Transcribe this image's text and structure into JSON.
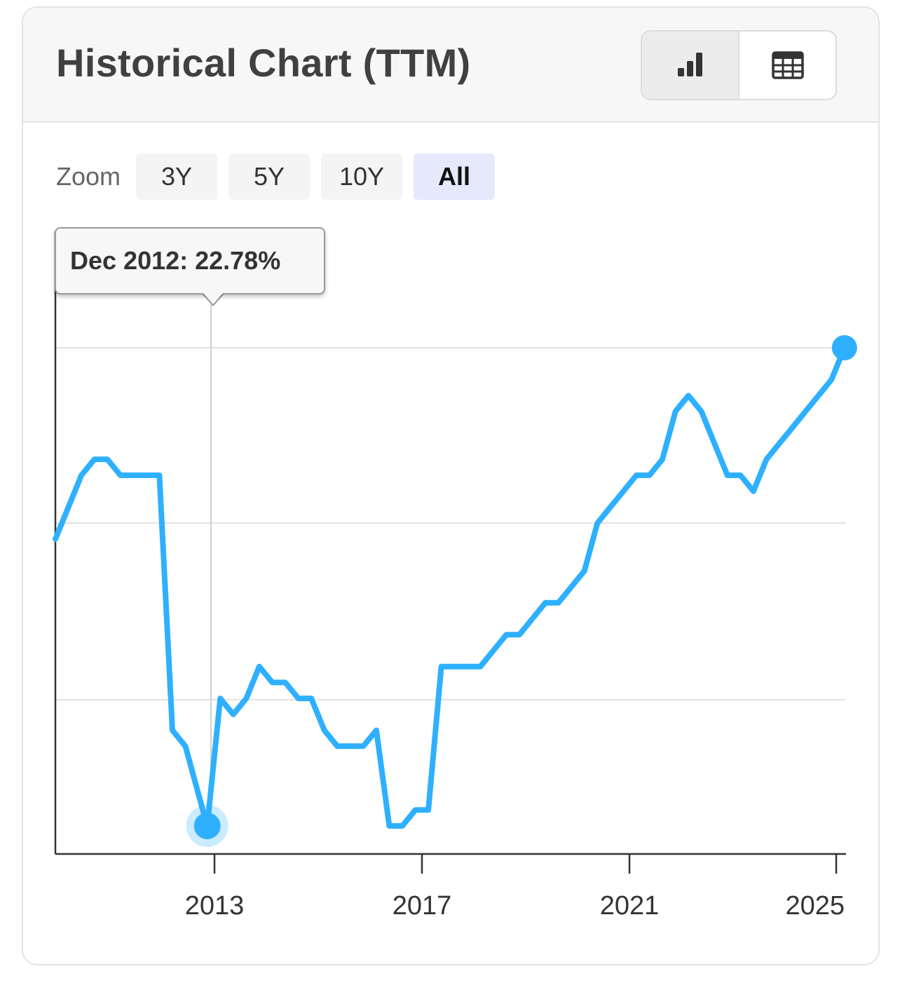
{
  "header": {
    "title": "Historical Chart (TTM)",
    "view_buttons": [
      {
        "icon": "bar-chart-icon",
        "active": true
      },
      {
        "icon": "table-icon",
        "active": false
      }
    ]
  },
  "zoom": {
    "label": "Zoom",
    "options": [
      {
        "label": "3Y",
        "active": false
      },
      {
        "label": "5Y",
        "active": false
      },
      {
        "label": "10Y",
        "active": false
      },
      {
        "label": "All",
        "active": true
      }
    ]
  },
  "tooltip": {
    "text": "Dec 2012: 22.78%",
    "x": 2012.92,
    "y": 22.78
  },
  "colors": {
    "line": "#2EB0FF",
    "grid": "#e2e2e2",
    "axis": "#333333"
  },
  "chart_data": {
    "type": "line",
    "title": "Historical Chart (TTM)",
    "xlabel": "",
    "ylabel": "",
    "x_ticks": [
      2013,
      2017,
      2021,
      2025
    ],
    "xlim": [
      2010.0,
      2025.2
    ],
    "ylim": [
      21.9,
      23.2
    ],
    "grid": true,
    "y_gridlines": [
      23.0,
      22.9,
      22.8
    ],
    "series": [
      {
        "values": [
          [
            2010.0,
            22.96
          ],
          [
            2010.25,
            22.98
          ],
          [
            2010.5,
            23.0
          ],
          [
            2010.75,
            23.01
          ],
          [
            2011.0,
            23.01
          ],
          [
            2011.25,
            23.0
          ],
          [
            2011.5,
            23.0
          ],
          [
            2011.75,
            23.0
          ],
          [
            2012.0,
            23.0
          ],
          [
            2012.25,
            22.84
          ],
          [
            2012.5,
            22.83
          ],
          [
            2012.75,
            22.8
          ],
          [
            2012.92,
            22.78
          ],
          [
            2013.17,
            22.86
          ],
          [
            2013.42,
            22.85
          ],
          [
            2013.67,
            22.86
          ],
          [
            2013.92,
            22.88
          ],
          [
            2014.17,
            22.87
          ],
          [
            2014.42,
            22.87
          ],
          [
            2014.67,
            22.86
          ],
          [
            2014.92,
            22.86
          ],
          [
            2015.17,
            22.84
          ],
          [
            2015.42,
            22.83
          ],
          [
            2015.67,
            22.83
          ],
          [
            2015.92,
            22.83
          ],
          [
            2016.17,
            22.84
          ],
          [
            2016.42,
            22.78
          ],
          [
            2016.67,
            22.78
          ],
          [
            2016.92,
            22.79
          ],
          [
            2017.17,
            22.79
          ],
          [
            2017.42,
            22.88
          ],
          [
            2017.67,
            22.88
          ],
          [
            2017.92,
            22.88
          ],
          [
            2018.17,
            22.88
          ],
          [
            2018.42,
            22.89
          ],
          [
            2018.67,
            22.9
          ],
          [
            2018.92,
            22.9
          ],
          [
            2019.17,
            22.91
          ],
          [
            2019.42,
            22.92
          ],
          [
            2019.67,
            22.92
          ],
          [
            2019.92,
            22.93
          ],
          [
            2020.17,
            22.94
          ],
          [
            2020.42,
            22.97
          ],
          [
            2020.67,
            22.98
          ],
          [
            2020.92,
            22.99
          ],
          [
            2021.17,
            23.0
          ],
          [
            2021.42,
            23.0
          ],
          [
            2021.67,
            23.01
          ],
          [
            2021.92,
            23.04
          ],
          [
            2022.17,
            23.05
          ],
          [
            2022.42,
            23.04
          ],
          [
            2022.67,
            23.02
          ],
          [
            2022.92,
            23.0
          ],
          [
            2023.17,
            23.0
          ],
          [
            2023.42,
            22.99
          ],
          [
            2023.67,
            23.01
          ],
          [
            2023.92,
            23.02
          ],
          [
            2024.17,
            23.03
          ],
          [
            2024.42,
            23.04
          ],
          [
            2024.67,
            23.05
          ],
          [
            2024.92,
            23.06
          ],
          [
            2025.17,
            23.08
          ]
        ]
      }
    ]
  }
}
